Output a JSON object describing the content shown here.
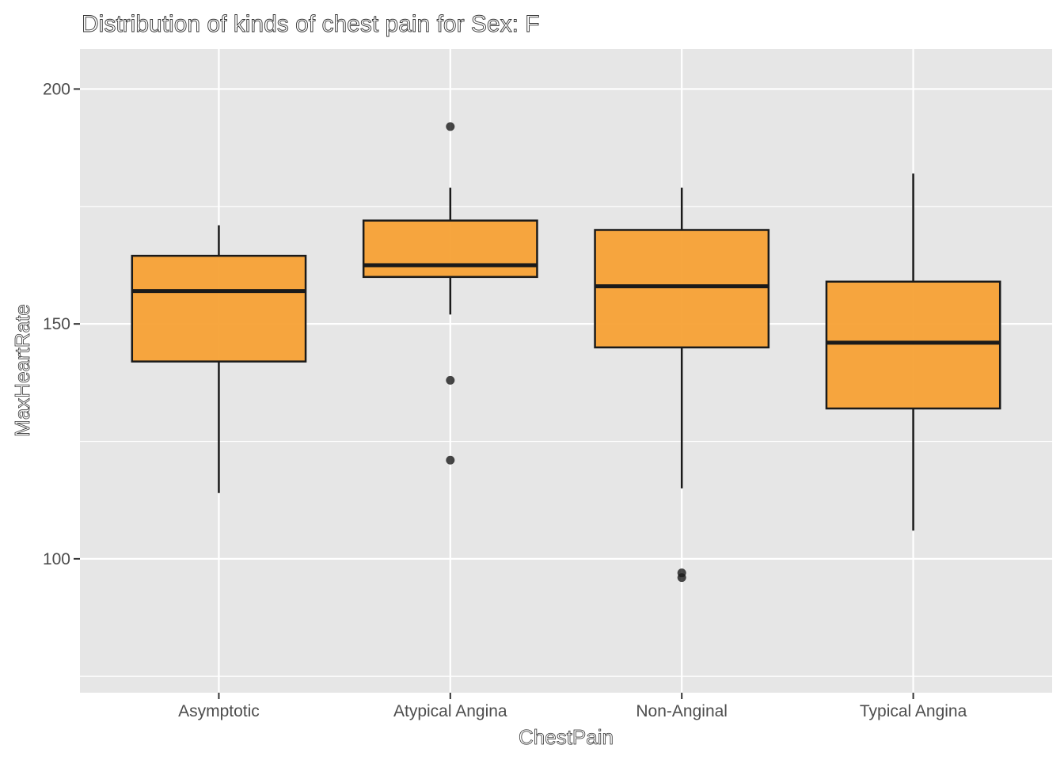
{
  "chart_data": {
    "type": "boxplot",
    "title": "Distribution of kinds of chest pain for Sex: F",
    "xlabel": "ChestPain",
    "ylabel": "MaxHeartRate",
    "categories": [
      "Asymptotic",
      "Atypical Angina",
      "Non-Anginal",
      "Typical Angina"
    ],
    "ylim": [
      71.5,
      208.5
    ],
    "yticks": [
      100,
      150,
      200
    ],
    "yminor": [
      75,
      125,
      175
    ],
    "grid": true,
    "fill_color": "#F7A135",
    "boxes": [
      {
        "category": "Asymptotic",
        "whisker_low": 114,
        "q1": 142,
        "median": 157,
        "q3": 164.5,
        "whisker_high": 171,
        "outliers": []
      },
      {
        "category": "Atypical Angina",
        "whisker_low": 152,
        "q1": 160,
        "median": 162.5,
        "q3": 172,
        "whisker_high": 179,
        "outliers": [
          192,
          138,
          121
        ]
      },
      {
        "category": "Non-Anginal",
        "whisker_low": 115,
        "q1": 145,
        "median": 158,
        "q3": 170,
        "whisker_high": 179,
        "outliers": [
          97,
          96
        ]
      },
      {
        "category": "Typical Angina",
        "whisker_low": 106,
        "q1": 132,
        "median": 146,
        "q3": 159,
        "whisker_high": 182,
        "outliers": []
      }
    ]
  }
}
